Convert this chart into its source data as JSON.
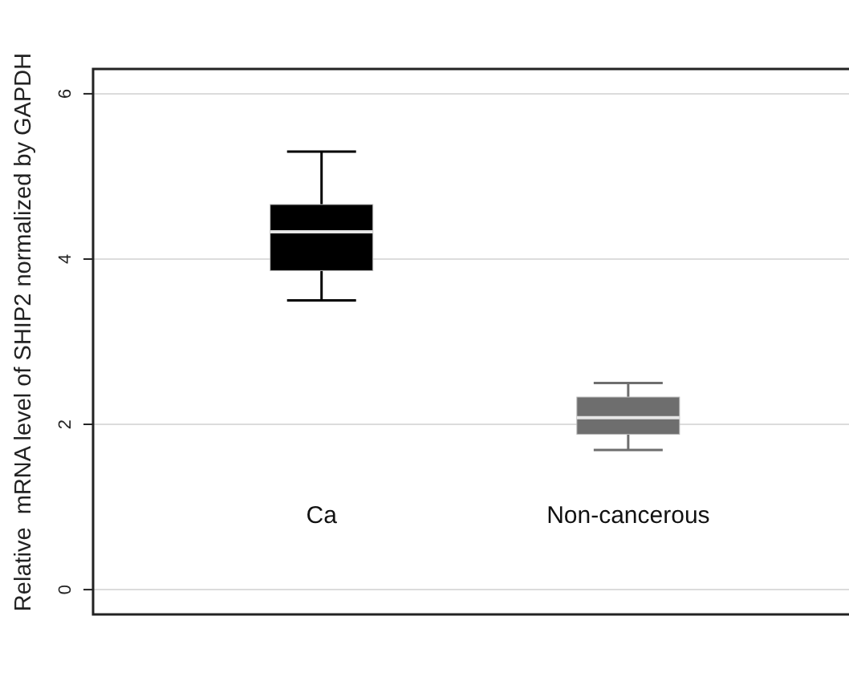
{
  "chart_data": {
    "type": "box",
    "ylabel": "Relative  mRNA level of SHIP2 normalized by GAPDH",
    "categories": [
      "Ca",
      "Non-cancerous"
    ],
    "boxes": [
      {
        "low": 3.5,
        "q1": 3.86,
        "median": 4.33,
        "q3": 4.66,
        "high": 5.3
      },
      {
        "low": 1.69,
        "q1": 1.88,
        "median": 2.08,
        "q3": 2.33,
        "high": 2.5
      }
    ],
    "colors": [
      "#000000",
      "#6e6e6e"
    ],
    "ylim": [
      -0.3,
      6.3
    ],
    "yticks": [
      0,
      2,
      4,
      6
    ],
    "grid": "y"
  }
}
